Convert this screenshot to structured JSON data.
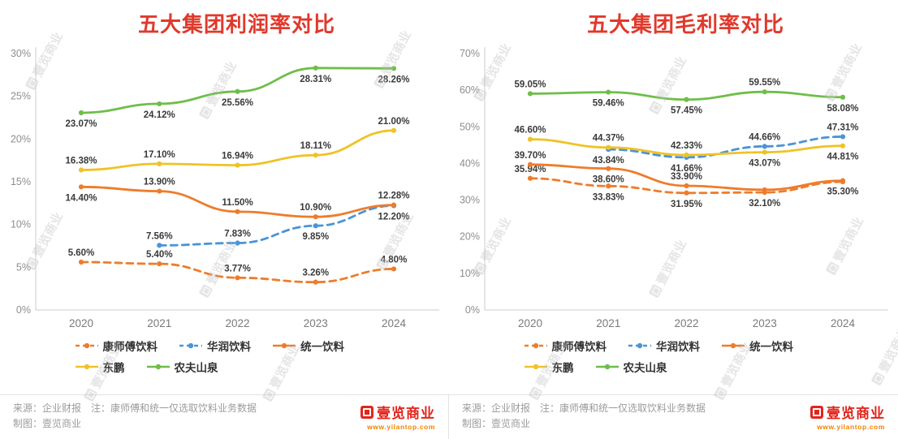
{
  "colors": {
    "title": "#e0392b",
    "logo": "#e1251b",
    "url": "#ef8200"
  },
  "chart_data": [
    {
      "type": "line",
      "title": "五大集团利润率对比",
      "xlabel": "",
      "ylabel": "",
      "categories": [
        "2020",
        "2021",
        "2022",
        "2023",
        "2024"
      ],
      "ylim": [
        0,
        30
      ],
      "yticks": [
        "0%",
        "5%",
        "10%",
        "15%",
        "20%",
        "25%",
        "30%"
      ],
      "grid": false,
      "legend_position": "bottom",
      "series": [
        {
          "name": "康师傅饮料",
          "color": "#ee7c2b",
          "dash": true,
          "values": [
            5.6,
            5.4,
            3.77,
            3.26,
            4.8
          ],
          "labels": [
            "5.60%",
            "5.40%",
            "3.77%",
            "3.26%",
            "4.80%"
          ],
          "label_pos": [
            "a",
            "a",
            "a",
            "a",
            "a"
          ]
        },
        {
          "name": "华润饮料",
          "color": "#4a94d8",
          "dash": true,
          "values": [
            null,
            7.56,
            7.83,
            9.85,
            12.2
          ],
          "labels": [
            null,
            "7.56%",
            "7.83%",
            "9.85%",
            "12.20%"
          ],
          "label_pos": [
            null,
            "a",
            "a",
            "b",
            "b"
          ]
        },
        {
          "name": "统一饮料",
          "color": "#ee7c2b",
          "dash": false,
          "values": [
            14.4,
            13.9,
            11.5,
            10.9,
            12.28
          ],
          "labels": [
            "14.40%",
            "13.90%",
            "11.50%",
            "10.90%",
            "12.28%"
          ],
          "label_pos": [
            "b",
            "a",
            "a",
            "a",
            "a"
          ]
        },
        {
          "name": "东鹏",
          "color": "#efc326",
          "dash": false,
          "values": [
            16.38,
            17.1,
            16.94,
            18.11,
            21.0
          ],
          "labels": [
            "16.38%",
            "17.10%",
            "16.94%",
            "18.11%",
            "21.00%"
          ],
          "label_pos": [
            "a",
            "a",
            "a",
            "a",
            "a"
          ]
        },
        {
          "name": "农夫山泉",
          "color": "#6ebe49",
          "dash": false,
          "values": [
            23.07,
            24.12,
            25.56,
            28.31,
            28.26
          ],
          "labels": [
            "23.07%",
            "24.12%",
            "25.56%",
            "28.31%",
            "28.26%"
          ],
          "label_pos": [
            "b",
            "b",
            "b",
            "b",
            "b"
          ]
        }
      ]
    },
    {
      "type": "line",
      "title": "五大集团毛利率对比",
      "xlabel": "",
      "ylabel": "",
      "categories": [
        "2020",
        "2021",
        "2022",
        "2023",
        "2024"
      ],
      "ylim": [
        0,
        70
      ],
      "yticks": [
        "0%",
        "10%",
        "20%",
        "30%",
        "40%",
        "50%",
        "60%",
        "70%"
      ],
      "grid": false,
      "legend_position": "bottom",
      "series": [
        {
          "name": "康师傅饮料",
          "color": "#ee7c2b",
          "dash": true,
          "values": [
            35.94,
            33.83,
            31.95,
            32.1,
            35.0
          ],
          "labels": [
            "35.94%",
            "33.83%",
            "31.95%",
            "32.10%",
            null
          ],
          "label_pos": [
            "a",
            "b",
            "b",
            "b",
            null
          ]
        },
        {
          "name": "华润饮料",
          "color": "#4a94d8",
          "dash": true,
          "values": [
            null,
            43.84,
            41.66,
            44.66,
            47.31
          ],
          "labels": [
            null,
            "43.84%",
            "41.66%",
            "44.66%",
            "47.31%"
          ],
          "label_pos": [
            null,
            "b",
            "b",
            "a",
            "a"
          ]
        },
        {
          "name": "统一饮料",
          "color": "#ee7c2b",
          "dash": false,
          "values": [
            39.7,
            38.6,
            33.9,
            32.8,
            35.3
          ],
          "labels": [
            "39.70%",
            "38.60%",
            "33.90%",
            null,
            "35.30%"
          ],
          "label_pos": [
            "a",
            "b",
            "a",
            null,
            "b"
          ]
        },
        {
          "name": "东鹏",
          "color": "#efc326",
          "dash": false,
          "values": [
            46.6,
            44.37,
            42.33,
            43.07,
            44.81
          ],
          "labels": [
            "46.60%",
            "44.37%",
            "42.33%",
            "43.07%",
            "44.81%"
          ],
          "label_pos": [
            "a",
            "a",
            "a",
            "b",
            "b"
          ]
        },
        {
          "name": "农夫山泉",
          "color": "#6ebe49",
          "dash": false,
          "values": [
            59.05,
            59.46,
            57.45,
            59.55,
            58.08
          ],
          "labels": [
            "59.05%",
            "59.46%",
            "57.45%",
            "59.55%",
            "58.08%"
          ],
          "label_pos": [
            "a",
            "b",
            "b",
            "a",
            "b"
          ]
        }
      ]
    }
  ],
  "footer": {
    "source_note": "来源：企业财报　注：康师傅和统一仅选取饮料业务数据",
    "credit": "制图：壹览商业",
    "logo_text": "壹览商业",
    "logo_url": "www.yilantop.com"
  },
  "watermark": {
    "text": "壹览商业"
  }
}
